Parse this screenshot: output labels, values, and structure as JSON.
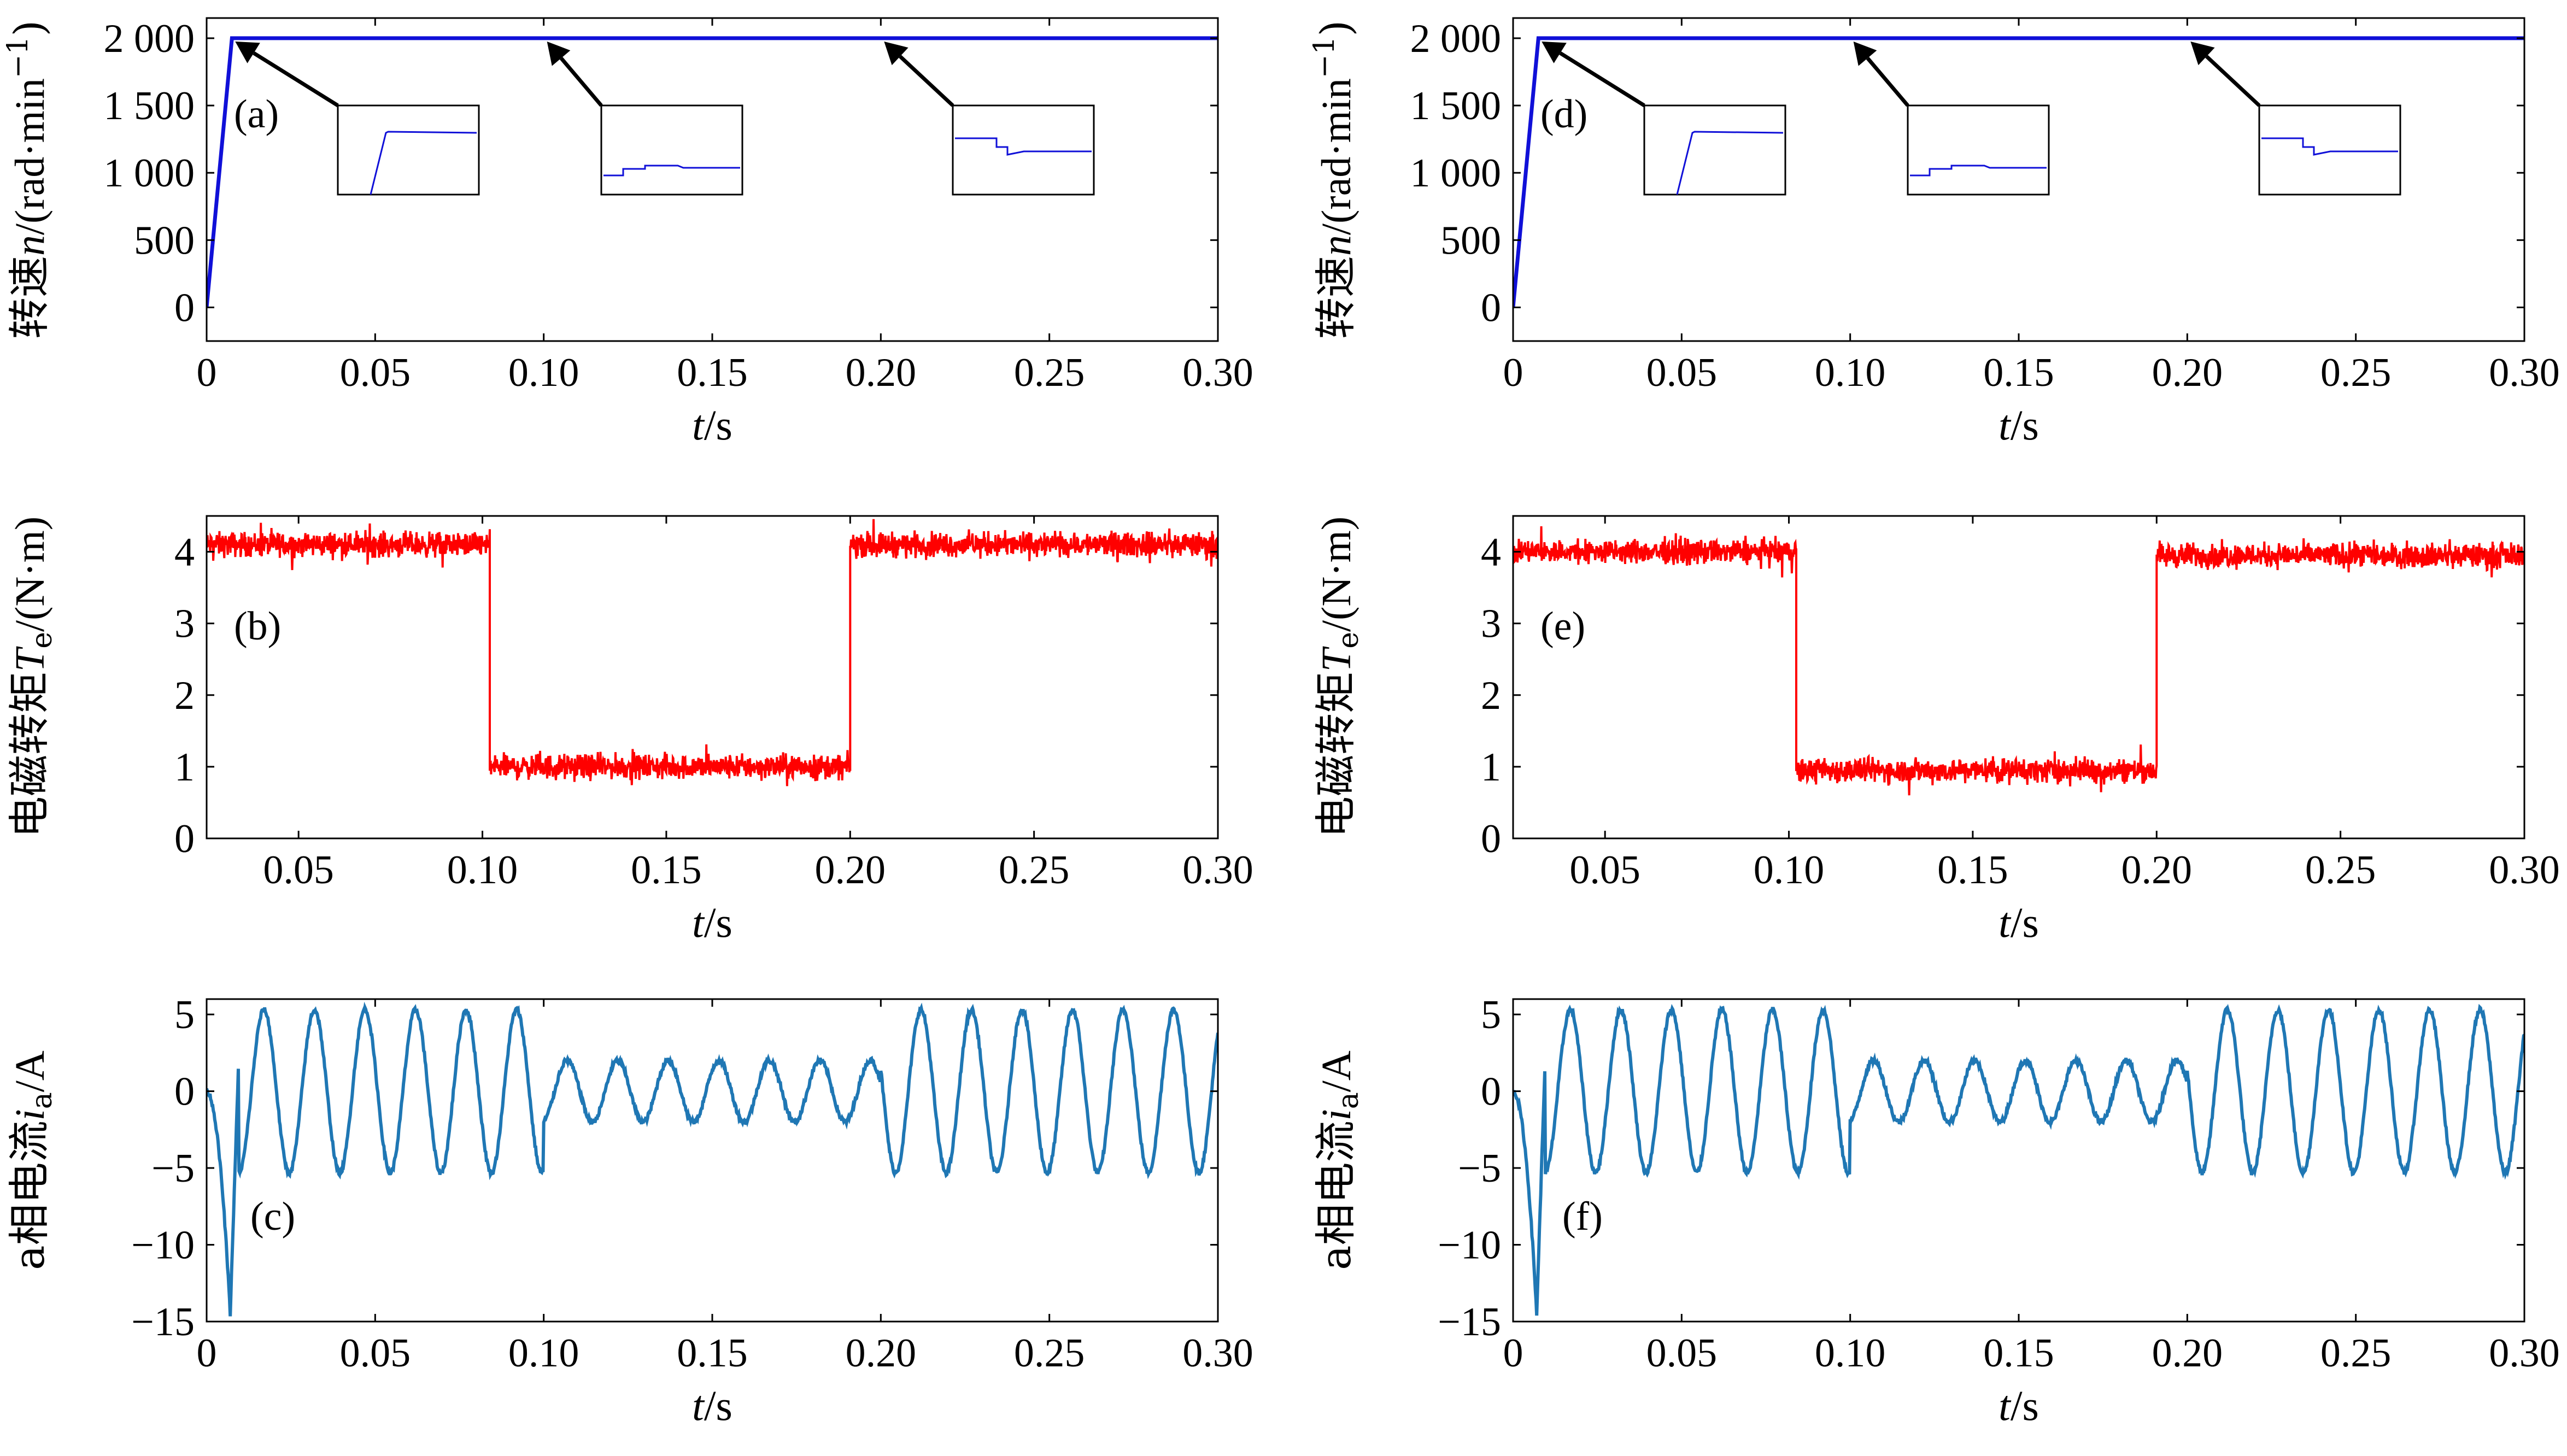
{
  "colors": {
    "speed": "#1010d8",
    "torque": "#ff0000",
    "current": "#1f77b4",
    "axes": "#000000"
  },
  "chart_data": [
    {
      "id": "a",
      "type": "line",
      "panel_label": "(a)",
      "ylabel": {
        "main": "转速",
        "sym": "n",
        "rest": "/(rad·min",
        "sup": "−1",
        "close": ")"
      },
      "xlabel": {
        "sym": "t",
        "rest": "/s"
      },
      "xlim": [
        0,
        0.3
      ],
      "ylim": [
        -250,
        2150
      ],
      "xticks": [
        0,
        0.05,
        0.1,
        0.15,
        0.2,
        0.25,
        0.3
      ],
      "xtick_labels": [
        "0",
        "0.05",
        "0.10",
        "0.15",
        "0.20",
        "0.25",
        "0.30"
      ],
      "yticks": [
        0,
        500,
        1000,
        1500,
        2000
      ],
      "ytick_labels": [
        "0",
        "500",
        "1 000",
        "1 500",
        "2 000"
      ],
      "series": [
        {
          "x": [
            0,
            0.0075,
            0.3
          ],
          "y": [
            0,
            2000,
            2000
          ]
        }
      ],
      "insets": [
        {
          "target_x": 0.0075
        },
        {
          "target_x": 0.1
        },
        {
          "target_x": 0.2
        }
      ]
    },
    {
      "id": "b",
      "type": "line",
      "panel_label": "(b)",
      "ylabel": {
        "main": "电磁转矩",
        "sym": "T",
        "sub": "e",
        "rest": "/(N·m)"
      },
      "xlabel": {
        "sym": "t",
        "rest": "/s"
      },
      "xlim": [
        0.025,
        0.3
      ],
      "ylim": [
        0,
        4.5
      ],
      "xticks": [
        0.05,
        0.1,
        0.15,
        0.2,
        0.25,
        0.3
      ],
      "xtick_labels": [
        "0.05",
        "0.10",
        "0.15",
        "0.20",
        "0.25",
        "0.30"
      ],
      "yticks": [
        0,
        1,
        2,
        3,
        4
      ],
      "ytick_labels": [
        "0",
        "1",
        "2",
        "3",
        "4"
      ],
      "series": [
        {
          "segments": [
            {
              "x0": 0.025,
              "x1": 0.102,
              "level": 4.1
            },
            {
              "x0": 0.102,
              "x1": 0.2,
              "level": 1.0
            },
            {
              "x0": 0.2,
              "x1": 0.3,
              "level": 4.1
            }
          ],
          "noise": 0.12
        }
      ]
    },
    {
      "id": "c",
      "type": "line",
      "panel_label": "(c)",
      "ylabel": {
        "main": "a相电流",
        "sym": "i",
        "sub": "a",
        "rest": "/A"
      },
      "xlabel": {
        "sym": "t",
        "rest": "/s"
      },
      "xlim": [
        0,
        0.3
      ],
      "ylim": [
        -15,
        6
      ],
      "xticks": [
        0,
        0.05,
        0.1,
        0.15,
        0.2,
        0.25,
        0.3
      ],
      "xtick_labels": [
        "0",
        "0.05",
        "0.10",
        "0.15",
        "0.20",
        "0.25",
        "0.30"
      ],
      "yticks": [
        -15,
        -10,
        -5,
        0,
        5
      ],
      "ytick_labels": [
        "−15",
        "−10",
        "−5",
        "0",
        "5"
      ],
      "series": [
        {
          "frequency_hz": 66.7,
          "amplitude_load": 5.3,
          "amplitude_light": 2.0,
          "light_interval": [
            0.1,
            0.2
          ],
          "startup_min": -14.5,
          "startup_min_x": 0.007
        }
      ]
    },
    {
      "id": "d",
      "type": "line",
      "panel_label": "(d)",
      "ylabel": {
        "main": "转速",
        "sym": "n",
        "rest": "/(rad·min",
        "sup": "−1",
        "close": ")"
      },
      "xlabel": {
        "sym": "t",
        "rest": "/s"
      },
      "xlim": [
        0,
        0.3
      ],
      "ylim": [
        -250,
        2150
      ],
      "xticks": [
        0,
        0.05,
        0.1,
        0.15,
        0.2,
        0.25,
        0.3
      ],
      "xtick_labels": [
        "0",
        "0.05",
        "0.10",
        "0.15",
        "0.20",
        "0.25",
        "0.30"
      ],
      "yticks": [
        0,
        500,
        1000,
        1500,
        2000
      ],
      "ytick_labels": [
        "0",
        "500",
        "1 000",
        "1 500",
        "2 000"
      ],
      "series": [
        {
          "x": [
            0,
            0.0075,
            0.3
          ],
          "y": [
            0,
            2000,
            2000
          ]
        }
      ],
      "insets": [
        {
          "target_x": 0.0075
        },
        {
          "target_x": 0.1
        },
        {
          "target_x": 0.2
        }
      ]
    },
    {
      "id": "e",
      "type": "line",
      "panel_label": "(e)",
      "ylabel": {
        "main": "电磁转矩",
        "sym": "T",
        "sub": "e",
        "rest": "/(N·m)"
      },
      "xlabel": {
        "sym": "t",
        "rest": "/s"
      },
      "xlim": [
        0.025,
        0.3
      ],
      "ylim": [
        0,
        4.5
      ],
      "xticks": [
        0.05,
        0.1,
        0.15,
        0.2,
        0.25,
        0.3
      ],
      "xtick_labels": [
        "0.05",
        "0.10",
        "0.15",
        "0.20",
        "0.25",
        "0.30"
      ],
      "yticks": [
        0,
        1,
        2,
        3,
        4
      ],
      "ytick_labels": [
        "0",
        "1",
        "2",
        "3",
        "4"
      ],
      "series": [
        {
          "segments": [
            {
              "x0": 0.025,
              "x1": 0.102,
              "level": 4.0
            },
            {
              "x0": 0.102,
              "x1": 0.2,
              "level": 0.95
            },
            {
              "x0": 0.2,
              "x1": 0.3,
              "level": 3.95
            }
          ],
          "noise": 0.12
        }
      ]
    },
    {
      "id": "f",
      "type": "line",
      "panel_label": "(f)",
      "ylabel": {
        "main": "a相电流",
        "sym": "i",
        "sub": "a",
        "rest": "/A"
      },
      "xlabel": {
        "sym": "t",
        "rest": "/s"
      },
      "xlim": [
        0,
        0.3
      ],
      "ylim": [
        -15,
        6
      ],
      "xticks": [
        0,
        0.05,
        0.1,
        0.15,
        0.2,
        0.25,
        0.3
      ],
      "xtick_labels": [
        "0",
        "0.05",
        "0.10",
        "0.15",
        "0.20",
        "0.25",
        "0.30"
      ],
      "yticks": [
        -15,
        -10,
        -5,
        0,
        5
      ],
      "ytick_labels": [
        "−15",
        "−10",
        "−5",
        "0",
        "5"
      ],
      "series": [
        {
          "frequency_hz": 66.7,
          "amplitude_load": 5.3,
          "amplitude_light": 2.0,
          "light_interval": [
            0.1,
            0.2
          ],
          "startup_min": -14.5,
          "startup_min_x": 0.007
        }
      ]
    }
  ]
}
